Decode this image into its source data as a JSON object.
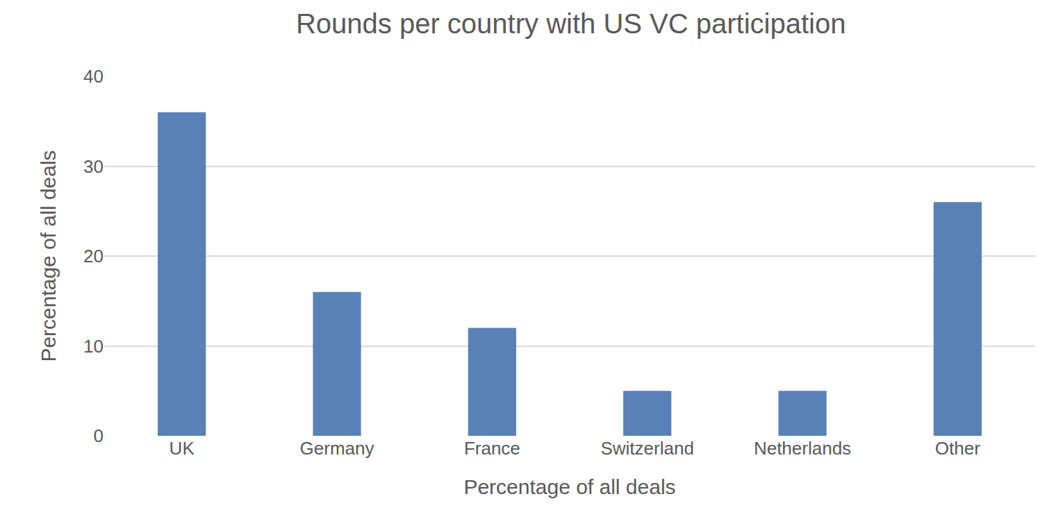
{
  "chart_data": {
    "type": "bar",
    "title": "Rounds per country with US VC participation",
    "x_label": "Percentage of all deals",
    "y_label": "Percentage of all deals",
    "categories": [
      "UK",
      "Germany",
      "France",
      "Switzerland",
      "Netherlands",
      "Other"
    ],
    "values": [
      36,
      16,
      12,
      5,
      5,
      26
    ],
    "color": "#5a80b8",
    "ylim": [
      0,
      40
    ],
    "yticks": [
      0,
      10,
      20,
      30,
      40
    ],
    "grid": true
  }
}
